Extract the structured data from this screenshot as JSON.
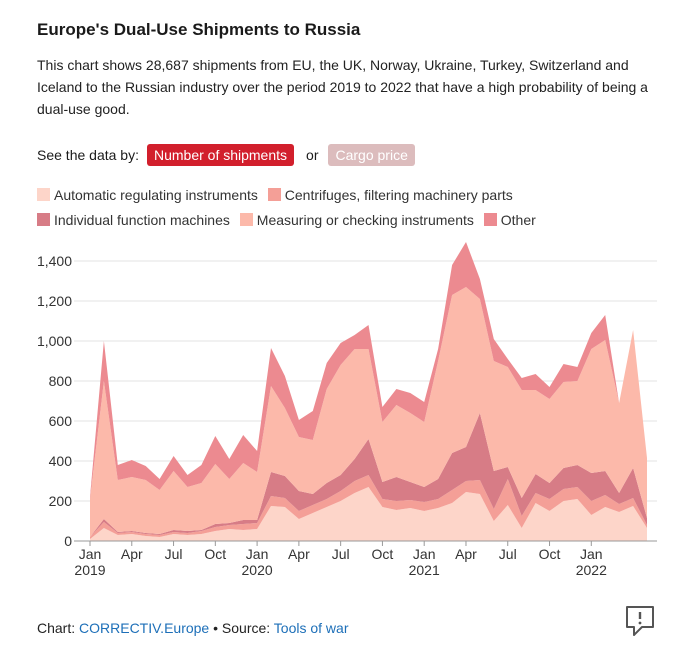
{
  "title": "Europe's Dual-Use Shipments to Russia",
  "description": "This chart shows 28,687 shipments from EU, the UK, Norway, Ukraine, Turkey, Switzerland and Iceland to the Russian industry over the period 2019 to 2022 that have a high probability of being a dual-use good.",
  "controls": {
    "label": "See the data by:",
    "option_active": "Number of shipments",
    "separator": "or",
    "option_inactive": "Cargo price"
  },
  "footer": {
    "chart_label": "Chart:",
    "chart_source": "CORRECTIV.Europe",
    "sep": "•",
    "source_label": "Source:",
    "source_link": "Tools of war"
  },
  "icons": {
    "comment": "speech-bubble-exclamation-icon"
  },
  "colors": {
    "active_button": "#d21f2c",
    "inactive_button": "#dcbcbd",
    "link": "#1d6fb8"
  },
  "chart_data": {
    "type": "area",
    "stacked": true,
    "x_start": "2019-01",
    "x_end": "2022-04",
    "x_ticks": [
      {
        "label": "Jan",
        "sub": "2019"
      },
      {
        "label": "Apr",
        "sub": ""
      },
      {
        "label": "Jul",
        "sub": ""
      },
      {
        "label": "Oct",
        "sub": ""
      },
      {
        "label": "Jan",
        "sub": "2020"
      },
      {
        "label": "Apr",
        "sub": ""
      },
      {
        "label": "Jul",
        "sub": ""
      },
      {
        "label": "Oct",
        "sub": ""
      },
      {
        "label": "Jan",
        "sub": "2021"
      },
      {
        "label": "Apr",
        "sub": ""
      },
      {
        "label": "Jul",
        "sub": ""
      },
      {
        "label": "Oct",
        "sub": ""
      },
      {
        "label": "Jan",
        "sub": "2022"
      }
    ],
    "y_ticks": [
      "0",
      "200",
      "400",
      "600",
      "800",
      "1,000",
      "1,200",
      "1,400"
    ],
    "ylim": [
      0,
      1400
    ],
    "grid": true,
    "legend_position": "top",
    "series": [
      {
        "name": "Automatic regulating instruments",
        "color": "#fdd5c9",
        "values": [
          10,
          65,
          30,
          35,
          25,
          20,
          35,
          30,
          35,
          50,
          60,
          55,
          60,
          175,
          170,
          110,
          140,
          170,
          200,
          240,
          270,
          170,
          155,
          165,
          150,
          165,
          190,
          245,
          235,
          100,
          180,
          65,
          190,
          150,
          200,
          210,
          130,
          170,
          145,
          175,
          65
        ]
      },
      {
        "name": "Centrifuges, filtering machinery parts",
        "color": "#f49f97",
        "values": [
          10,
          30,
          10,
          10,
          10,
          10,
          10,
          10,
          15,
          20,
          20,
          30,
          30,
          50,
          45,
          40,
          40,
          40,
          50,
          60,
          60,
          40,
          45,
          40,
          45,
          45,
          65,
          55,
          70,
          60,
          130,
          60,
          50,
          60,
          60,
          60,
          70,
          60,
          40,
          40,
          15
        ]
      },
      {
        "name": "Individual function machines",
        "color": "#d77c86",
        "values": [
          0,
          15,
          5,
          5,
          5,
          5,
          10,
          10,
          5,
          15,
          10,
          20,
          15,
          120,
          110,
          100,
          55,
          80,
          80,
          110,
          180,
          85,
          120,
          90,
          75,
          100,
          185,
          170,
          335,
          190,
          60,
          90,
          95,
          80,
          105,
          110,
          140,
          120,
          55,
          150,
          35
        ]
      },
      {
        "name": "Measuring or checking instruments",
        "color": "#fcb9aa",
        "values": [
          190,
          690,
          260,
          270,
          265,
          220,
          295,
          220,
          235,
          300,
          220,
          285,
          240,
          430,
          340,
          270,
          270,
          470,
          550,
          550,
          450,
          300,
          360,
          345,
          325,
          590,
          790,
          800,
          570,
          550,
          500,
          540,
          420,
          420,
          430,
          420,
          620,
          655,
          450,
          690,
          300
        ]
      },
      {
        "name": "Other",
        "color": "#ec8a90",
        "values": [
          10,
          200,
          75,
          85,
          70,
          55,
          75,
          60,
          90,
          140,
          100,
          140,
          105,
          190,
          160,
          85,
          145,
          130,
          110,
          70,
          120,
          75,
          80,
          100,
          100,
          60,
          150,
          225,
          100,
          110,
          40,
          60,
          80,
          60,
          90,
          70,
          80,
          125,
          0,
          0,
          0
        ]
      }
    ]
  }
}
